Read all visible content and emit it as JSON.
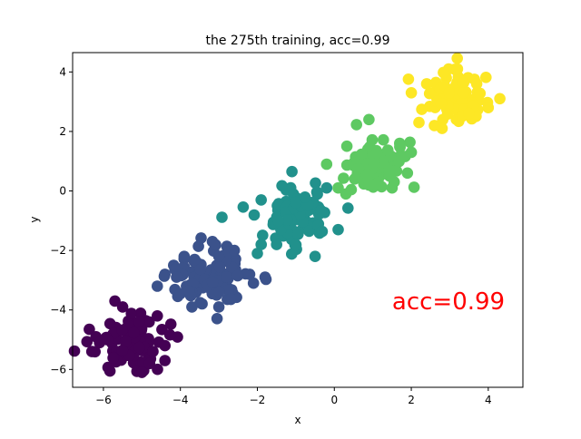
{
  "chart_data": {
    "type": "scatter",
    "title": "the 275th training, acc=0.99",
    "xlabel": "x",
    "ylabel": "y",
    "xlim": [
      -6.8,
      4.9
    ],
    "ylim": [
      -6.6,
      4.65
    ],
    "xticks": [
      -6,
      -4,
      -2,
      0,
      2,
      4
    ],
    "yticks": [
      -6,
      -4,
      -2,
      0,
      2,
      4
    ],
    "grid": false,
    "annotation": {
      "text": "acc=0.99",
      "x": 1.5,
      "y": -3.7,
      "color": "#ff0000"
    },
    "clusters": [
      {
        "center": [
          -5.2,
          -5.1
        ],
        "spread": 0.45,
        "color": "#440154",
        "points": [
          [
            -6.3,
            -5.4
          ],
          [
            -6.1,
            -5.1
          ],
          [
            -5.7,
            -3.7
          ],
          [
            -5.5,
            -3.9
          ],
          [
            -4.6,
            -4.2
          ],
          [
            -4.4,
            -5.2
          ],
          [
            -4.4,
            -5.7
          ],
          [
            -5.0,
            -6.1
          ],
          [
            -5.9,
            -5.0
          ],
          [
            -4.8,
            -5.8
          ]
        ]
      },
      {
        "center": [
          -3.2,
          -2.8
        ],
        "spread": 0.45,
        "color": "#3b528b",
        "points": [
          [
            -4.6,
            -3.2
          ],
          [
            -4.4,
            -2.8
          ],
          [
            -4.1,
            -2.9
          ],
          [
            -3.9,
            -2.2
          ],
          [
            -3.1,
            -1.8
          ],
          [
            -2.6,
            -2.0
          ],
          [
            -2.2,
            -2.8
          ],
          [
            -1.8,
            -2.9
          ],
          [
            -2.1,
            -3.1
          ],
          [
            -3.0,
            -3.9
          ],
          [
            -3.7,
            -3.9
          ]
        ]
      },
      {
        "center": [
          -1.0,
          -0.9
        ],
        "spread": 0.45,
        "color": "#21918c",
        "points": [
          [
            -1.1,
            0.65
          ],
          [
            -1.9,
            -1.8
          ],
          [
            -1.5,
            -1.8
          ],
          [
            -0.5,
            -2.2
          ],
          [
            -0.2,
            0.1
          ],
          [
            0.1,
            -1.3
          ],
          [
            -2.0,
            -2.1
          ],
          [
            -1.9,
            -0.3
          ]
        ]
      },
      {
        "center": [
          1.1,
          0.9
        ],
        "spread": 0.4,
        "color": "#5ec962",
        "points": [
          [
            0.9,
            2.4
          ],
          [
            -0.2,
            0.9
          ],
          [
            0.1,
            0.1
          ],
          [
            0.3,
            -0.1
          ],
          [
            1.9,
            0.6
          ],
          [
            1.7,
            1.6
          ],
          [
            2.0,
            1.3
          ],
          [
            0.9,
            0.2
          ],
          [
            1.5,
            0.1
          ]
        ]
      },
      {
        "center": [
          3.1,
          3.1
        ],
        "spread": 0.4,
        "color": "#fde725",
        "points": [
          [
            4.3,
            3.1
          ],
          [
            4.0,
            2.8
          ],
          [
            2.6,
            2.2
          ],
          [
            2.8,
            2.1
          ],
          [
            2.2,
            2.3
          ],
          [
            3.2,
            4.1
          ],
          [
            2.4,
            3.6
          ],
          [
            2.0,
            3.3
          ],
          [
            3.7,
            3.6
          ],
          [
            3.5,
            2.6
          ]
        ]
      }
    ]
  }
}
